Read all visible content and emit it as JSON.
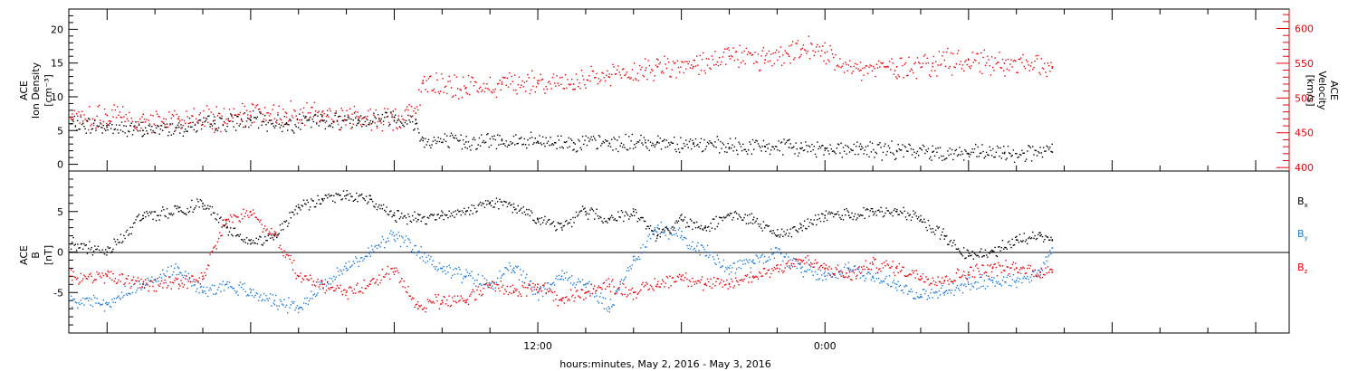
{
  "chart_data": [
    {
      "type": "scatter",
      "panel": "top",
      "ylabel_left": [
        "ACE",
        "Ion Density",
        "[cm⁻³]"
      ],
      "ylabel_right": [
        "ACE",
        "Velocity",
        "[km/s]"
      ],
      "left_axis": {
        "ylim": [
          -1,
          23
        ],
        "ticks": [
          0,
          5,
          10,
          15,
          20
        ],
        "color": "#000000"
      },
      "right_axis": {
        "ylim": [
          395,
          628
        ],
        "ticks": [
          400,
          450,
          500,
          550,
          600
        ],
        "color": "#e8000b"
      },
      "xlim_hours": [
        -7.6,
        43.4
      ],
      "series": [
        {
          "axis": "left",
          "color": "#000000",
          "x_hours": [
            -7.5,
            -6,
            -4.5,
            -3,
            -1.5,
            0,
            1.5,
            3,
            4.5,
            6,
            6.9,
            7.2,
            9,
            10.5,
            12,
            13.5,
            15,
            16.5,
            17,
            18.5,
            20,
            21.5,
            22.5,
            23,
            24,
            25.5,
            27,
            28.5,
            30,
            31.5,
            33.5
          ],
          "values": [
            6,
            5.5,
            5,
            5.5,
            6,
            6.5,
            6,
            6.5,
            6.5,
            7,
            6,
            3.5,
            3.3,
            3.5,
            3.3,
            3.2,
            3.1,
            3.2,
            3.3,
            3,
            2.5,
            2.6,
            2.5,
            2.3,
            2.4,
            2.2,
            2,
            1.8,
            1.6,
            1.6,
            1.8
          ]
        },
        {
          "axis": "right",
          "color": "#e8000b",
          "x_hours": [
            -7.5,
            -6,
            -4.5,
            -3,
            -1.5,
            0,
            1.5,
            3,
            4.5,
            6,
            6.9,
            7.2,
            9,
            10.5,
            12,
            13.5,
            15,
            16.5,
            17,
            18.5,
            20,
            21.5,
            22.5,
            23,
            24,
            25.5,
            27,
            28.5,
            30,
            31.5,
            33.5
          ],
          "values": [
            470,
            475,
            465,
            470,
            468,
            475,
            478,
            475,
            470,
            472,
            478,
            525,
            515,
            520,
            525,
            520,
            530,
            540,
            545,
            545,
            560,
            555,
            560,
            570,
            565,
            540,
            545,
            550,
            555,
            550,
            545
          ]
        }
      ]
    },
    {
      "type": "scatter",
      "panel": "bottom",
      "ylabel_left": [
        "ACE",
        "B",
        "[nT]"
      ],
      "legend": [
        "B",
        "B",
        "B"
      ],
      "legend_subscripts": [
        "x",
        "y",
        "z"
      ],
      "ylim": [
        -10,
        10
      ],
      "ticks": [
        -5,
        0,
        5
      ],
      "xlim_hours": [
        -7.6,
        43.4
      ],
      "x_tick_labels": [
        "12:00",
        "0:00"
      ],
      "x_tick_hours": [
        12,
        24
      ],
      "xlabel": "hours:minutes, May  2, 2016 - May  3, 2016",
      "series": [
        {
          "name": "Bx",
          "color": "#000000",
          "x_hours": [
            -7.5,
            -6,
            -4.5,
            -3,
            -2,
            -1,
            0,
            1,
            2,
            3,
            4,
            5,
            6,
            7,
            8,
            9,
            10,
            11,
            12,
            13,
            14,
            15,
            16,
            17,
            18,
            19,
            20,
            21,
            22,
            23,
            24,
            25,
            26,
            27,
            28,
            29,
            30,
            31,
            32,
            33,
            33.5
          ],
          "values": [
            1,
            0,
            4.5,
            5,
            6,
            3,
            1,
            2,
            5.5,
            6.5,
            7,
            6.5,
            4.5,
            4,
            4.5,
            5,
            6,
            5.5,
            4,
            3,
            5,
            4,
            5,
            2,
            4,
            3,
            4.5,
            4,
            2,
            3,
            4.5,
            4.5,
            5,
            5,
            4,
            2,
            -0.5,
            0,
            1.5,
            2,
            1.5
          ]
        },
        {
          "name": "By",
          "color": "#1f78d0",
          "x_hours": [
            -7.5,
            -6,
            -4.5,
            -3,
            -2,
            -1,
            0,
            1,
            2,
            3,
            4,
            5,
            6,
            7,
            8,
            9,
            10,
            11,
            12,
            13,
            14,
            15,
            16,
            17,
            18,
            19,
            20,
            21,
            22,
            23,
            24,
            25,
            26,
            27,
            28,
            29,
            30,
            31,
            32,
            33,
            33.5
          ],
          "values": [
            -6,
            -6.5,
            -4,
            -2,
            -5,
            -4,
            -5,
            -6,
            -7,
            -4,
            -2,
            0,
            2,
            0,
            -2,
            -3,
            -4,
            -2,
            -5,
            -3,
            -4,
            -7,
            -1,
            3,
            2,
            0,
            -2,
            -1,
            0,
            -2,
            -3,
            -2,
            -3,
            -4,
            -5.5,
            -5,
            -4,
            -3.5,
            -3.5,
            -2.5,
            0.5
          ]
        },
        {
          "name": "Bz",
          "color": "#e8000b",
          "x_hours": [
            -7.5,
            -6,
            -4.5,
            -3,
            -2,
            -1,
            0,
            1,
            2,
            3,
            4,
            5,
            6,
            7,
            8,
            9,
            10,
            11,
            12,
            13,
            14,
            15,
            16,
            17,
            18,
            19,
            20,
            21,
            22,
            23,
            24,
            25,
            26,
            27,
            28,
            29,
            30,
            31,
            32,
            33,
            33.5
          ],
          "values": [
            -3,
            -3,
            -4,
            -4,
            -3,
            4,
            5,
            2,
            -3,
            -4,
            -5,
            -4,
            -2,
            -7,
            -6,
            -6,
            -4,
            -5,
            -4,
            -6,
            -5,
            -4,
            -5,
            -4,
            -3,
            -4,
            -4,
            -3,
            -2,
            -1,
            -2,
            -3,
            -1.5,
            -2,
            -3,
            -3.5,
            -2.5,
            -2,
            -2,
            -2.5,
            -2.5
          ]
        }
      ]
    }
  ]
}
